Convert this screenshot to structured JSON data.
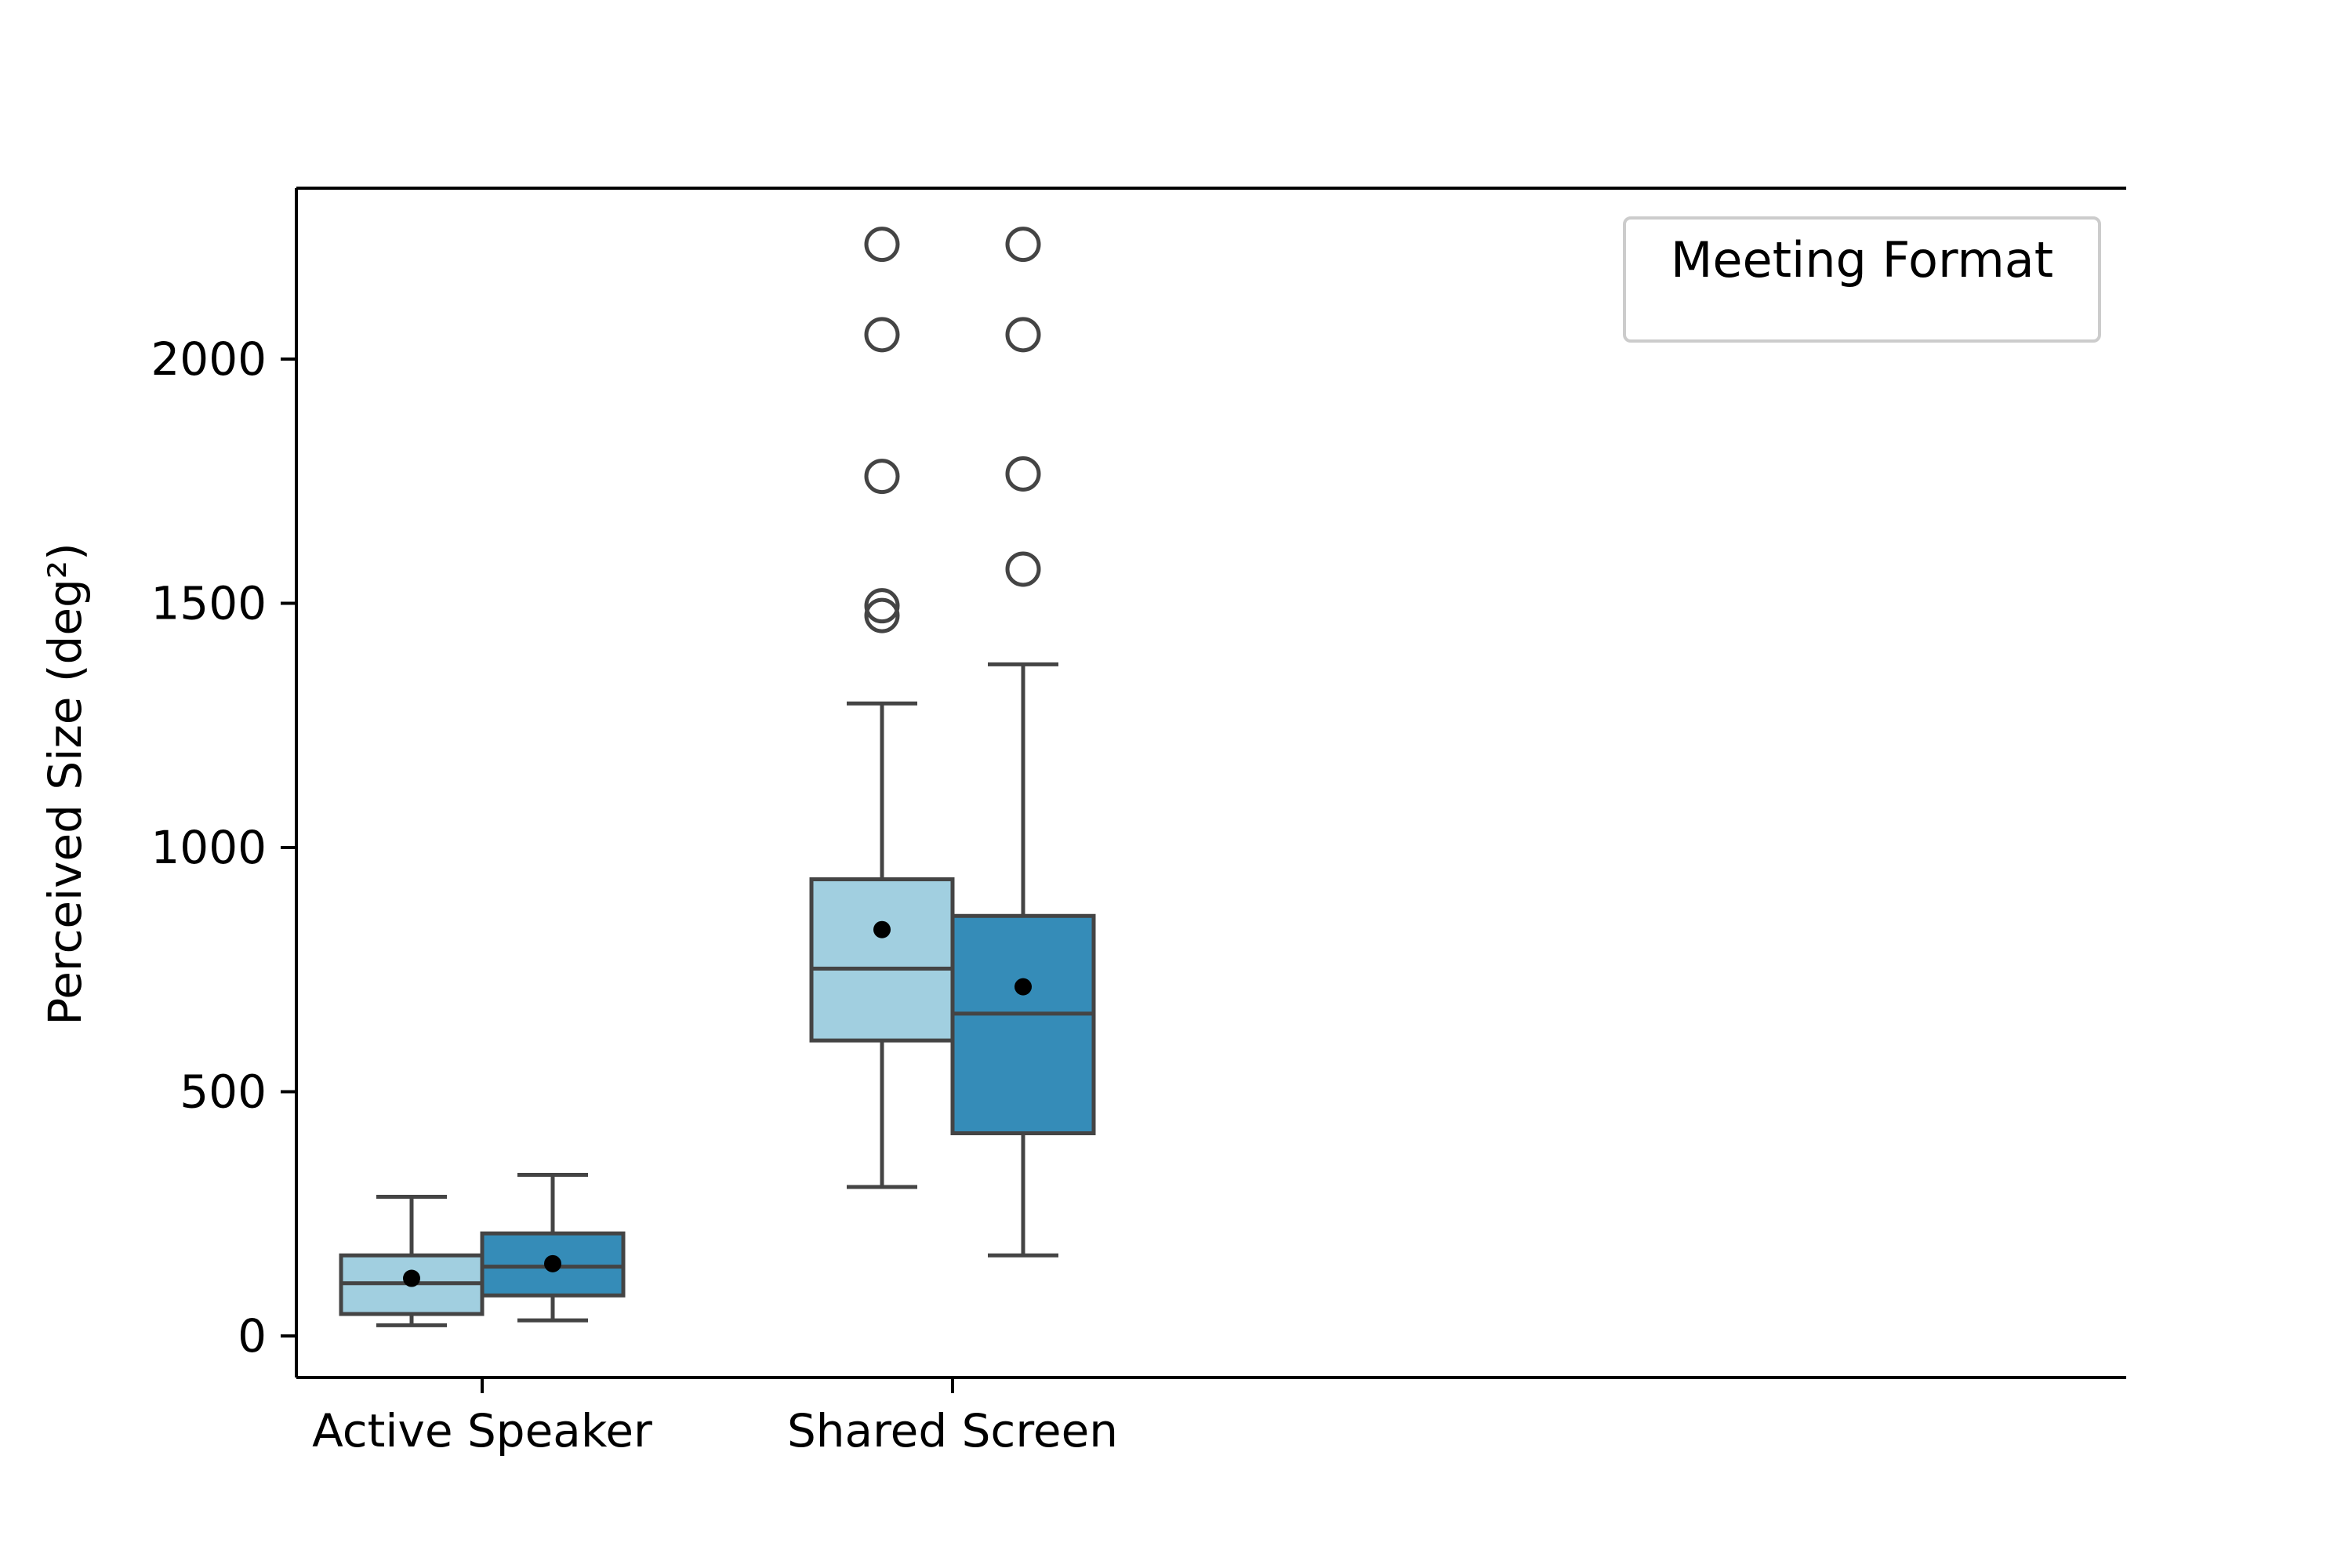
{
  "chart_data": {
    "type": "box",
    "ylabel": "Perceived Size (deg²)",
    "categories": [
      "Active Speaker",
      "Shared Screen"
    ],
    "ylim": [
      -85,
      2350
    ],
    "yticks": [
      {
        "value": 0,
        "label": "0"
      },
      {
        "value": 500,
        "label": "500"
      },
      {
        "value": 1000,
        "label": "1000"
      },
      {
        "value": 1500,
        "label": "1500"
      },
      {
        "value": 2000,
        "label": "2000"
      }
    ],
    "legend": {
      "title": "Meeting Format",
      "placement": "top-right"
    },
    "colors": {
      "light": "#a1cfe0",
      "dark": "#358cb8",
      "edge": "#444444"
    },
    "groups": [
      {
        "category": "Active Speaker",
        "boxes": [
          {
            "color": "light",
            "whisker_low": 22,
            "q1": 45,
            "median": 108,
            "q3": 165,
            "whisker_high": 285,
            "mean": 118,
            "outliers": []
          },
          {
            "color": "dark",
            "whisker_low": 32,
            "q1": 83,
            "median": 142,
            "q3": 210,
            "whisker_high": 330,
            "mean": 148,
            "outliers": []
          }
        ]
      },
      {
        "category": "Shared Screen",
        "boxes": [
          {
            "color": "light",
            "whisker_low": 305,
            "q1": 605,
            "median": 752,
            "q3": 935,
            "whisker_high": 1295,
            "mean": 832,
            "outliers": [
              1475,
              1495,
              1760,
              2050,
              2235
            ]
          },
          {
            "color": "dark",
            "whisker_low": 165,
            "q1": 415,
            "median": 660,
            "q3": 860,
            "whisker_high": 1375,
            "mean": 715,
            "outliers": [
              1570,
              1765,
              2050,
              2235
            ]
          }
        ]
      }
    ]
  }
}
